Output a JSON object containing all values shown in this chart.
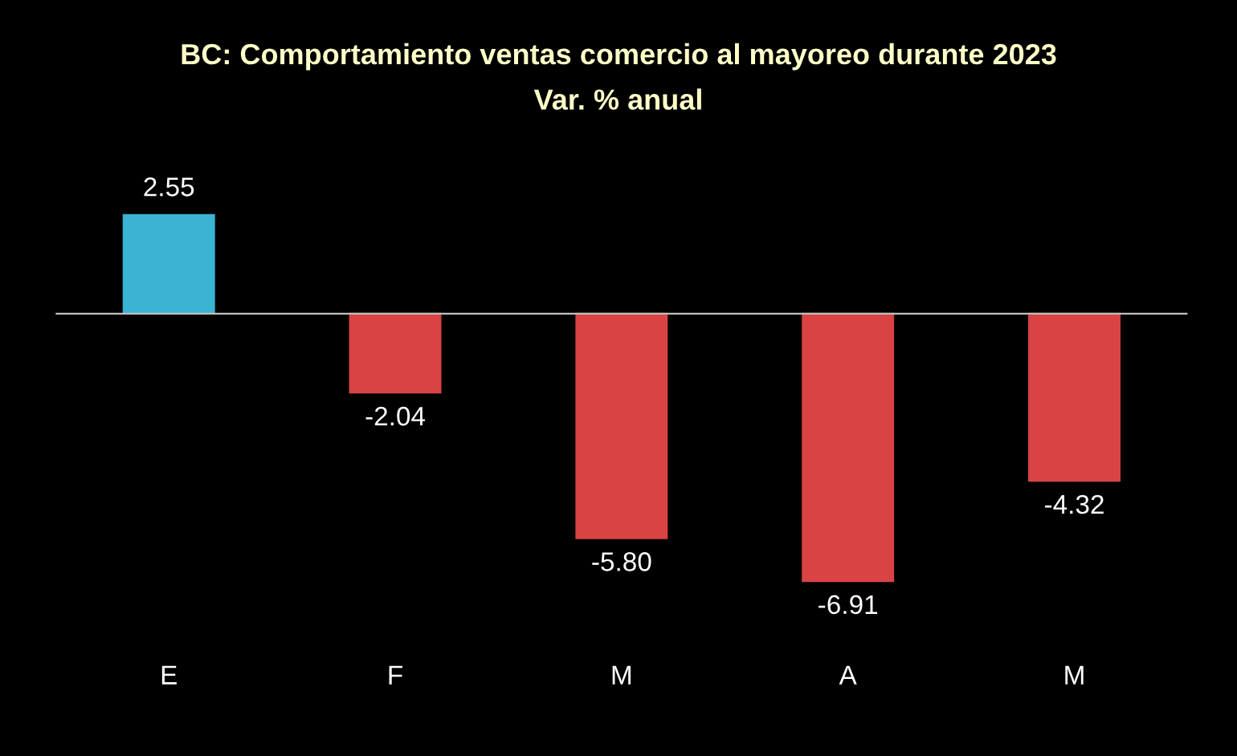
{
  "chart_data": {
    "type": "bar",
    "title": "BC: Comportamiento ventas comercio al mayoreo durante 2023",
    "subtitle": "Var. % anual",
    "categories": [
      "E",
      "F",
      "M",
      "A",
      "M"
    ],
    "values": [
      2.55,
      -2.04,
      -5.8,
      -6.91,
      -4.32
    ],
    "value_labels": [
      "2.55",
      "-2.04",
      "-5.80",
      "-6.91",
      "-4.32"
    ],
    "colors": [
      "#3ab4d2",
      "#d94343",
      "#d94343",
      "#d94343",
      "#d94343"
    ],
    "grid": false,
    "legend": false
  }
}
